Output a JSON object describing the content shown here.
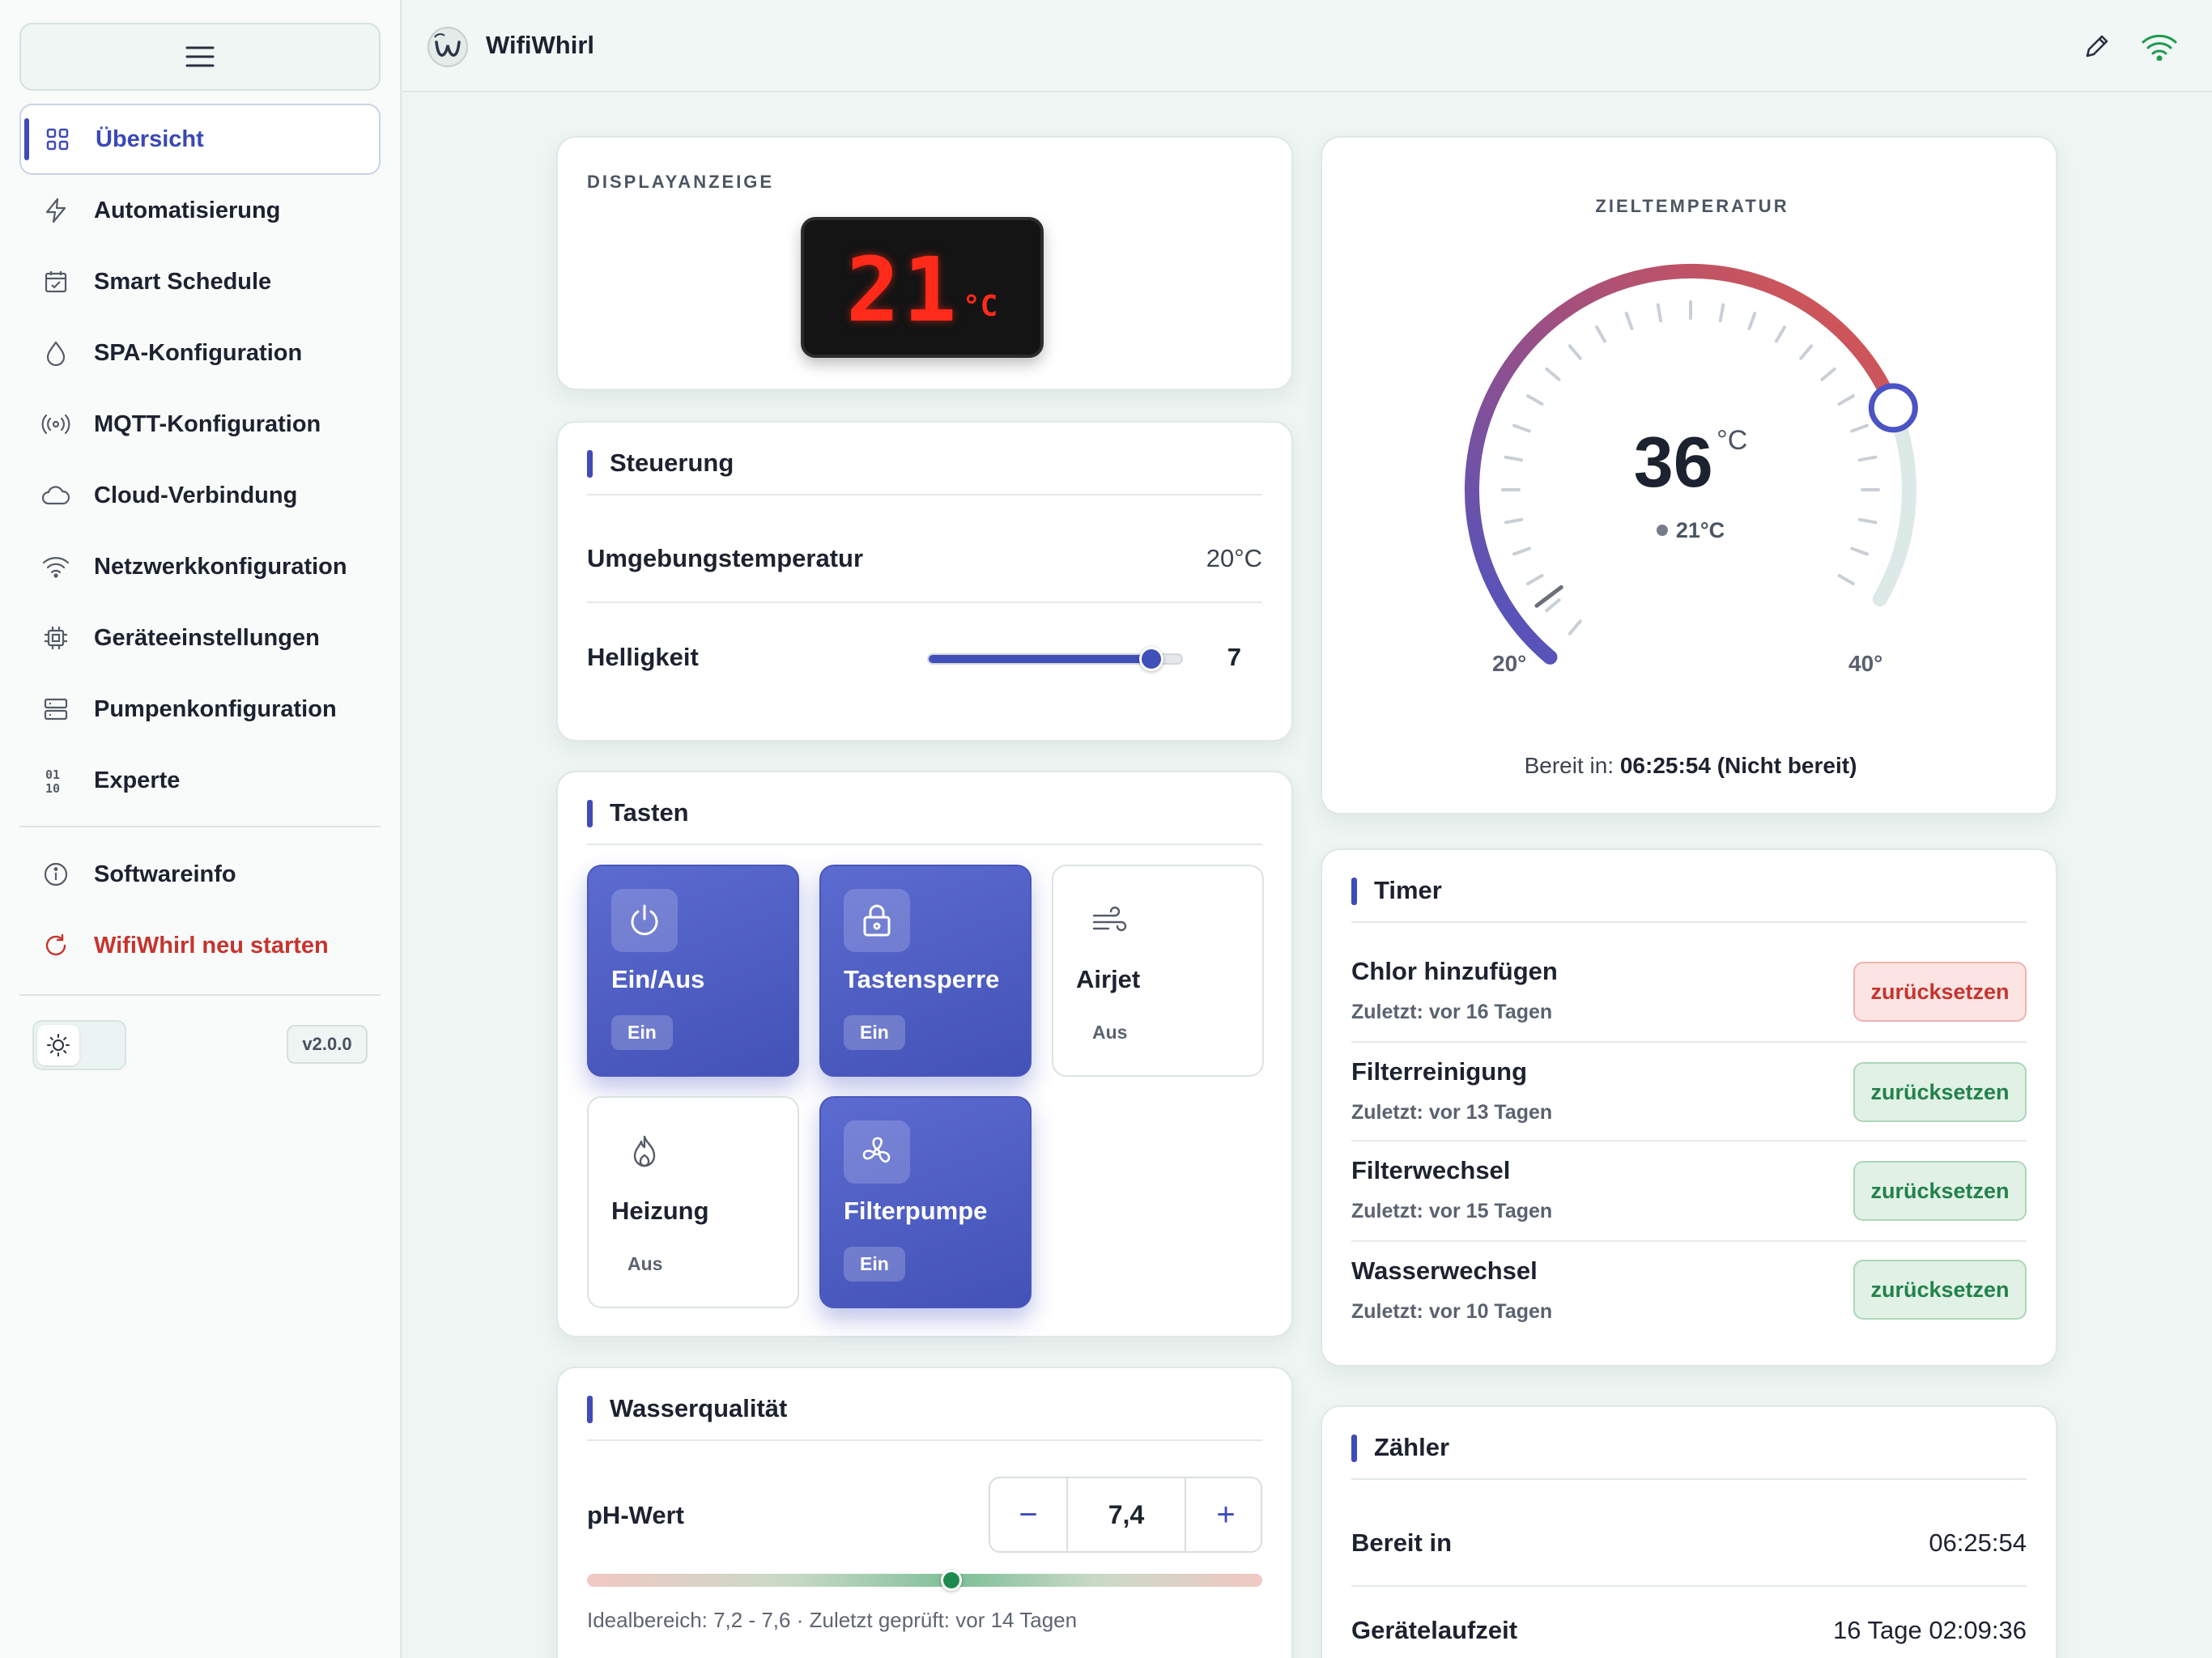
{
  "app": {
    "title": "WifiWhirl",
    "version": "v2.0.0"
  },
  "sidebar": {
    "items": [
      {
        "label": "Übersicht",
        "icon": "grid-icon"
      },
      {
        "label": "Automatisierung",
        "icon": "lightning-icon"
      },
      {
        "label": "Smart Schedule",
        "icon": "calendar-icon"
      },
      {
        "label": "SPA-Konfiguration",
        "icon": "drop-icon"
      },
      {
        "label": "MQTT-Konfiguration",
        "icon": "broadcast-icon"
      },
      {
        "label": "Cloud-Verbindung",
        "icon": "cloud-icon"
      },
      {
        "label": "Netzwerkkonfiguration",
        "icon": "wifi-icon"
      },
      {
        "label": "Geräteeinstellungen",
        "icon": "chip-icon"
      },
      {
        "label": "Pumpenkonfiguration",
        "icon": "server-icon"
      },
      {
        "label": "Experte",
        "icon": "binary-icon"
      }
    ],
    "footer_items": [
      {
        "label": "Softwareinfo",
        "icon": "info-icon"
      },
      {
        "label": "WifiWhirl neu starten",
        "icon": "restart-icon"
      }
    ]
  },
  "display": {
    "title": "DISPLAYANZEIGE",
    "value": "21",
    "unit": "°C"
  },
  "control": {
    "title": "Steuerung",
    "ambient_label": "Umgebungstemperatur",
    "ambient_value": "20°C",
    "brightness_label": "Helligkeit",
    "brightness_value": "7",
    "brightness_fraction": 0.875
  },
  "buttons": {
    "title": "Tasten",
    "tiles": [
      {
        "label": "Ein/Aus",
        "state": "Ein",
        "on": true,
        "icon": "power-icon"
      },
      {
        "label": "Tastensperre",
        "state": "Ein",
        "on": true,
        "icon": "lock-icon"
      },
      {
        "label": "Airjet",
        "state": "Aus",
        "on": false,
        "icon": "wind-icon"
      },
      {
        "label": "Heizung",
        "state": "Aus",
        "on": false,
        "icon": "flame-icon"
      },
      {
        "label": "Filterpumpe",
        "state": "Ein",
        "on": true,
        "icon": "fan-icon"
      }
    ]
  },
  "water": {
    "title": "Wasserqualität",
    "ph_label": "pH-Wert",
    "ph_value": "7,4",
    "ph_fraction": 0.54,
    "minus": "−",
    "plus": "+",
    "hint": "Idealbereich: 7,2 - 7,6 · Zuletzt geprüft: vor 14 Tagen"
  },
  "target": {
    "title": "ZIELTEMPERATUR",
    "value": "36",
    "unit": "°C",
    "current": "21°C",
    "min": "20°",
    "max": "40°",
    "min_value": 20,
    "max_value": 40,
    "target_value": 36,
    "current_value": 21,
    "ready_label": "Bereit in:",
    "ready_value": "06:25:54 (Nicht bereit)"
  },
  "timer": {
    "title": "Timer",
    "items": [
      {
        "name": "Chlor hinzufügen",
        "last": "Zuletzt: vor 16 Tagen",
        "button": "zurücksetzen",
        "status": "red"
      },
      {
        "name": "Filterreinigung",
        "last": "Zuletzt: vor 13 Tagen",
        "button": "zurücksetzen",
        "status": "green"
      },
      {
        "name": "Filterwechsel",
        "last": "Zuletzt: vor 15 Tagen",
        "button": "zurücksetzen",
        "status": "green"
      },
      {
        "name": "Wasserwechsel",
        "last": "Zuletzt: vor 10 Tagen",
        "button": "zurücksetzen",
        "status": "green"
      }
    ]
  },
  "counter": {
    "title": "Zähler",
    "rows": [
      {
        "label": "Bereit in",
        "value": "06:25:54"
      },
      {
        "label": "Gerätelaufzeit",
        "value": "16 Tage 02:09:36"
      }
    ]
  },
  "colors": {
    "accent": "#3f4bb8",
    "danger": "#c6342f",
    "success": "#22824a",
    "lcd": "#ff2a1a"
  }
}
